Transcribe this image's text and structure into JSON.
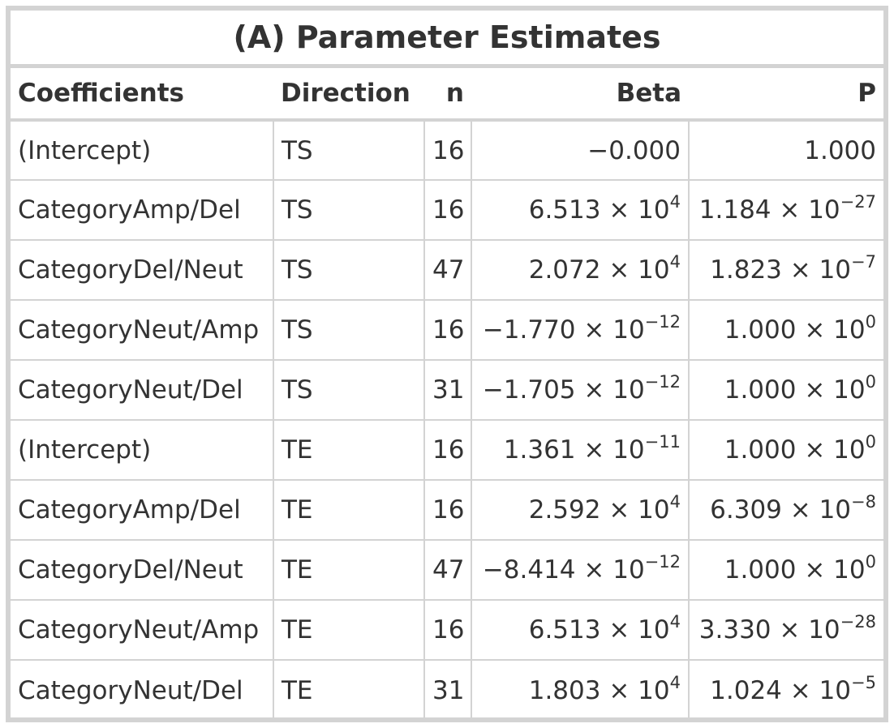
{
  "title": "(A) Parameter Estimates",
  "columns": {
    "coefficients": "Coefficients",
    "direction": "Direction",
    "n": "n",
    "beta": "Beta",
    "p": "P"
  },
  "rows": [
    {
      "coefficient": "(Intercept)",
      "direction": "TS",
      "n": "16",
      "beta": {
        "mantissa": "−0.000",
        "exponent": ""
      },
      "p": {
        "mantissa": "1.000",
        "exponent": ""
      }
    },
    {
      "coefficient": "CategoryAmp/Del",
      "direction": "TS",
      "n": "16",
      "beta": {
        "mantissa": "6.513 × 10",
        "exponent": "4"
      },
      "p": {
        "mantissa": "1.184 × 10",
        "exponent": "−27"
      }
    },
    {
      "coefficient": "CategoryDel/Neut",
      "direction": "TS",
      "n": "47",
      "beta": {
        "mantissa": "2.072 × 10",
        "exponent": "4"
      },
      "p": {
        "mantissa": "1.823 × 10",
        "exponent": "−7"
      }
    },
    {
      "coefficient": "CategoryNeut/Amp",
      "direction": "TS",
      "n": "16",
      "beta": {
        "mantissa": "−1.770 × 10",
        "exponent": "−12"
      },
      "p": {
        "mantissa": "1.000 × 10",
        "exponent": "0"
      }
    },
    {
      "coefficient": "CategoryNeut/Del",
      "direction": "TS",
      "n": "31",
      "beta": {
        "mantissa": "−1.705 × 10",
        "exponent": "−12"
      },
      "p": {
        "mantissa": "1.000 × 10",
        "exponent": "0"
      }
    },
    {
      "coefficient": "(Intercept)",
      "direction": "TE",
      "n": "16",
      "beta": {
        "mantissa": "1.361 × 10",
        "exponent": "−11"
      },
      "p": {
        "mantissa": "1.000 × 10",
        "exponent": "0"
      }
    },
    {
      "coefficient": "CategoryAmp/Del",
      "direction": "TE",
      "n": "16",
      "beta": {
        "mantissa": "2.592 × 10",
        "exponent": "4"
      },
      "p": {
        "mantissa": "6.309 × 10",
        "exponent": "−8"
      }
    },
    {
      "coefficient": "CategoryDel/Neut",
      "direction": "TE",
      "n": "47",
      "beta": {
        "mantissa": "−8.414 × 10",
        "exponent": "−12"
      },
      "p": {
        "mantissa": "1.000 × 10",
        "exponent": "0"
      }
    },
    {
      "coefficient": "CategoryNeut/Amp",
      "direction": "TE",
      "n": "16",
      "beta": {
        "mantissa": "6.513 × 10",
        "exponent": "4"
      },
      "p": {
        "mantissa": "3.330 × 10",
        "exponent": "−28"
      }
    },
    {
      "coefficient": "CategoryNeut/Del",
      "direction": "TE",
      "n": "31",
      "beta": {
        "mantissa": "1.803 × 10",
        "exponent": "4"
      },
      "p": {
        "mantissa": "1.024 × 10",
        "exponent": "−5"
      }
    }
  ]
}
